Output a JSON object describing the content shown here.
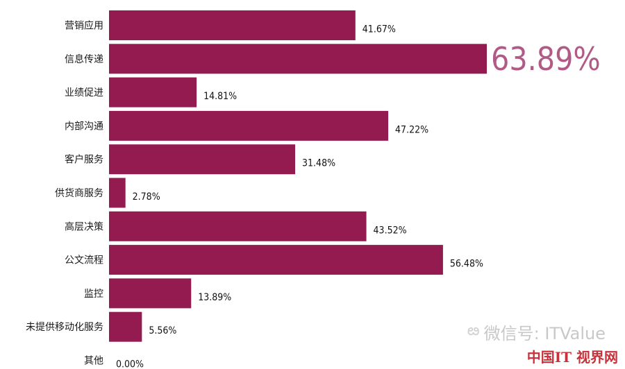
{
  "chart_data": {
    "type": "bar",
    "orientation": "horizontal",
    "categories": [
      "营销应用",
      "信息传递",
      "业绩促进",
      "内部沟通",
      "客户服务",
      "供货商服务",
      "高层决策",
      "公文流程",
      "监控",
      "未提供移动化服务",
      "其他"
    ],
    "values": [
      41.67,
      63.89,
      14.81,
      47.22,
      31.48,
      2.78,
      43.52,
      56.48,
      13.89,
      5.56,
      0.0
    ],
    "value_labels": [
      "41.67%",
      "63.89%",
      "14.81%",
      "47.22%",
      "31.48%",
      "2.78%",
      "43.52%",
      "56.48%",
      "13.89%",
      "5.56%",
      "0.00%"
    ],
    "highlight_index": 1,
    "xlim": [
      0,
      63.89
    ],
    "grid": false,
    "legend": "none",
    "title": "",
    "xlabel": "",
    "ylabel": ""
  },
  "colors": {
    "bar": "#941b4f",
    "highlight_text": "#b15a86",
    "watermark": "#c8c8c8",
    "logo": "#c7323a"
  },
  "watermark": {
    "icon": "wechat-icon",
    "text": "微信号: ITValue"
  },
  "logo": {
    "text": "中国IT 视界网"
  }
}
